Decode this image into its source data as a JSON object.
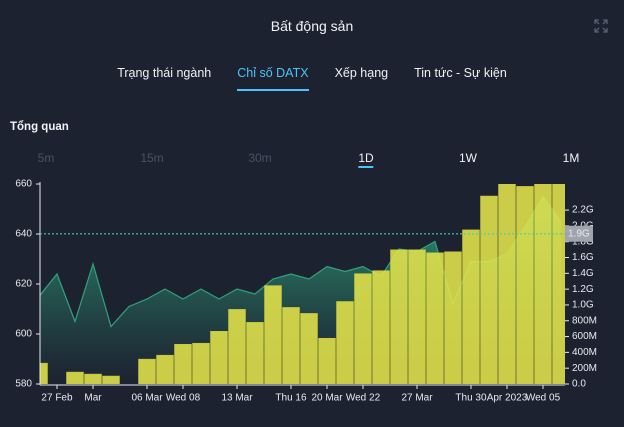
{
  "header": {
    "title": "Bất động sản"
  },
  "tabs": [
    "Trạng thái ngành",
    "Chỉ số DATX",
    "Xếp hạng",
    "Tin tức - Sự kiện"
  ],
  "active_tab": 1,
  "section_title": "Tổng quan",
  "timeframes": [
    {
      "label": "5m",
      "enabled": false
    },
    {
      "label": "15m",
      "enabled": false
    },
    {
      "label": "30m",
      "enabled": false
    },
    {
      "label": "1D",
      "enabled": true
    },
    {
      "label": "1W",
      "enabled": true
    },
    {
      "label": "1M",
      "enabled": true
    }
  ],
  "active_timeframe": 3,
  "chart_data": {
    "type": "combo",
    "categories": [
      null,
      "27 Feb",
      null,
      "Mar",
      null,
      null,
      "06 Mar",
      null,
      "Wed 08",
      null,
      null,
      "13 Mar",
      null,
      null,
      "Thu 16",
      null,
      "20 Mar",
      null,
      "Wed 22",
      null,
      null,
      "27 Mar",
      null,
      null,
      "Thu 30",
      null,
      "Apr 2023",
      null,
      "Wed 05",
      null
    ],
    "series": [
      {
        "type": "area",
        "color": "#2fa37c",
        "values": [
          615,
          624,
          605,
          628,
          603,
          611,
          614,
          618,
          614,
          618,
          614,
          618,
          616,
          622,
          624,
          622,
          627,
          625,
          627,
          623,
          634,
          633,
          637,
          612,
          629,
          629,
          632,
          643,
          655,
          645
        ]
      },
      {
        "type": "bar",
        "axis": "y2",
        "color": "#e4e44a",
        "values": [
          264,
          null,
          151,
          126,
          101,
          null,
          315,
          365,
          503,
          516,
          667,
          944,
          780,
          1245,
          969,
          893,
          579,
          1044,
          1396,
          1434,
          1698,
          1698,
          1660,
          1673,
          1950,
          2378,
          2530,
          2500,
          2530,
          2530
        ]
      }
    ],
    "ylim": [
      580,
      660
    ],
    "yticks": [
      580,
      600,
      620,
      640,
      660
    ],
    "y2lim": [
      0,
      2530
    ],
    "y2ticks": [
      {
        "value": 0,
        "label": "0.0"
      },
      {
        "value": 200,
        "label": "200M"
      },
      {
        "value": 400,
        "label": "400M"
      },
      {
        "value": 600,
        "label": "600M"
      },
      {
        "value": 800,
        "label": "800M"
      },
      {
        "value": 1000,
        "label": "1.0G"
      },
      {
        "value": 1200,
        "label": "1.2G"
      },
      {
        "value": 1400,
        "label": "1.4G"
      },
      {
        "value": 1600,
        "label": "1.6G"
      },
      {
        "value": 1800,
        "label": "1.8G"
      },
      {
        "value": 2000,
        "label": "2.0G"
      },
      {
        "value": 2200,
        "label": "2.2G"
      }
    ],
    "y2_marker": {
      "value": 1900,
      "label": "1.9G"
    }
  }
}
